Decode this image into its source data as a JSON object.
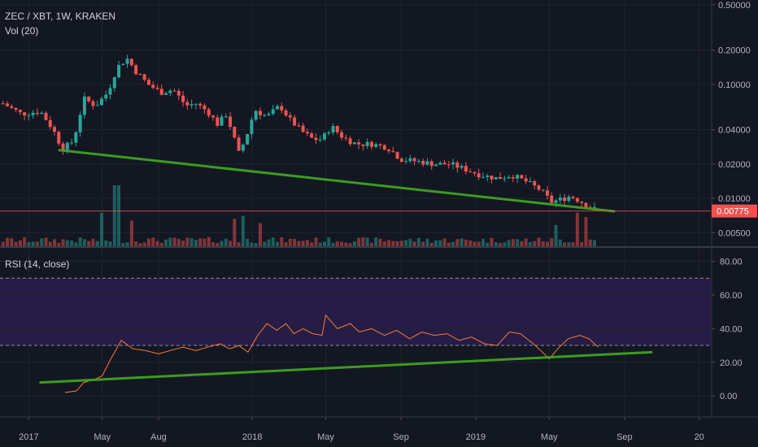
{
  "header": {
    "symbol_line": "ZEC / XBT, 1W, KRAKEN",
    "volume_label": "Vol (20)",
    "rsi_label": "RSI (14, close)"
  },
  "colors": {
    "background": "#131722",
    "grid": "#1f2430",
    "up": "#26a69a",
    "down": "#ef5350",
    "trendline": "#3d9b1f",
    "rsi_line": "#f57c3a",
    "rsi_band": "#2a1d4a",
    "current_price": "#ef5350"
  },
  "chart_data": [
    {
      "type": "candlestick",
      "title": "ZEC / XBT, 1W, KRAKEN",
      "y_scale": "log",
      "ylim": [
        0.0038,
        0.55
      ],
      "y_ticks": [
        "0.50000",
        "0.20000",
        "0.10000",
        "0.04000",
        "0.02000",
        "0.01000",
        "0.00500"
      ],
      "y_tick_values": [
        0.5,
        0.2,
        0.1,
        0.04,
        0.02,
        0.01,
        0.005
      ],
      "x_ticks": [
        "2017",
        "May",
        "Aug",
        "2018",
        "May",
        "Sep",
        "2019",
        "May",
        "Sep",
        "20"
      ],
      "x_tick_dates": [
        "2017-01-01",
        "2017-05-01",
        "2017-08-01",
        "2018-01-01",
        "2018-05-01",
        "2018-09-01",
        "2019-01-01",
        "2019-05-01",
        "2019-09-01",
        "2020-01-01"
      ],
      "x_range": [
        "2016-11-15",
        "2020-01-20"
      ],
      "last_price": "0.00775",
      "last_price_value": 0.00775,
      "trendline": {
        "from": [
          "2017-02-20",
          0.0265
        ],
        "to": [
          "2019-08-15",
          0.0077
        ]
      },
      "price_path": [
        [
          "2016-11-20",
          0.068
        ],
        [
          "2016-12-20",
          0.055
        ],
        [
          "2017-01-20",
          0.058
        ],
        [
          "2017-02-10",
          0.04
        ],
        [
          "2017-02-25",
          0.027
        ],
        [
          "2017-03-15",
          0.032
        ],
        [
          "2017-04-01",
          0.075
        ],
        [
          "2017-04-20",
          0.065
        ],
        [
          "2017-05-10",
          0.085
        ],
        [
          "2017-05-25",
          0.14
        ],
        [
          "2017-06-10",
          0.17
        ],
        [
          "2017-06-25",
          0.13
        ],
        [
          "2017-07-15",
          0.1
        ],
        [
          "2017-08-05",
          0.085
        ],
        [
          "2017-08-25",
          0.09
        ],
        [
          "2017-09-15",
          0.065
        ],
        [
          "2017-10-01",
          0.068
        ],
        [
          "2017-10-20",
          0.058
        ],
        [
          "2017-11-05",
          0.045
        ],
        [
          "2017-11-20",
          0.055
        ],
        [
          "2017-12-10",
          0.025
        ],
        [
          "2017-12-20",
          0.032
        ],
        [
          "2018-01-05",
          0.06
        ],
        [
          "2018-01-25",
          0.052
        ],
        [
          "2018-02-15",
          0.065
        ],
        [
          "2018-03-05",
          0.048
        ],
        [
          "2018-03-25",
          0.038
        ],
        [
          "2018-04-10",
          0.033
        ],
        [
          "2018-04-25",
          0.033
        ],
        [
          "2018-05-10",
          0.043
        ],
        [
          "2018-05-30",
          0.034
        ],
        [
          "2018-06-20",
          0.03
        ],
        [
          "2018-07-15",
          0.03
        ],
        [
          "2018-08-10",
          0.028
        ],
        [
          "2018-09-01",
          0.022
        ],
        [
          "2018-10-01",
          0.021
        ],
        [
          "2018-10-25",
          0.02
        ],
        [
          "2018-11-20",
          0.02
        ],
        [
          "2018-12-15",
          0.018
        ],
        [
          "2019-01-10",
          0.016
        ],
        [
          "2019-02-05",
          0.015
        ],
        [
          "2019-03-01",
          0.016
        ],
        [
          "2019-03-25",
          0.014
        ],
        [
          "2019-04-15",
          0.012
        ],
        [
          "2019-05-05",
          0.0093
        ],
        [
          "2019-05-20",
          0.0098
        ],
        [
          "2019-06-05",
          0.0105
        ],
        [
          "2019-06-20",
          0.0095
        ],
        [
          "2019-07-05",
          0.0085
        ],
        [
          "2019-07-20",
          0.00775
        ]
      ],
      "volume_spikes": [
        [
          "2017-05-01",
          0.55
        ],
        [
          "2017-05-25",
          1.0
        ],
        [
          "2017-06-20",
          0.42
        ],
        [
          "2017-12-01",
          0.45
        ],
        [
          "2017-12-15",
          0.5
        ],
        [
          "2018-01-15",
          0.38
        ],
        [
          "2019-05-10",
          0.35
        ],
        [
          "2019-06-15",
          0.55
        ],
        [
          "2019-07-01",
          0.48
        ]
      ]
    },
    {
      "type": "line",
      "title": "RSI (14, close)",
      "ylim": [
        -12,
        88
      ],
      "y_ticks": [
        "80.00",
        "60.00",
        "40.00",
        "20.00",
        "0.00"
      ],
      "y_tick_values": [
        80,
        60,
        40,
        20,
        0
      ],
      "band": [
        30,
        70
      ],
      "guide_lines": [
        70,
        30
      ],
      "trendline": {
        "from": [
          "2017-01-20",
          8
        ],
        "to": [
          "2019-10-15",
          26
        ]
      },
      "series": [
        {
          "values": [
            [
              "2017-03-01",
              2
            ],
            [
              "2017-03-20",
              3
            ],
            [
              "2017-04-01",
              8
            ],
            [
              "2017-04-20",
              10
            ],
            [
              "2017-05-01",
              12
            ],
            [
              "2017-05-15",
              22
            ],
            [
              "2017-06-01",
              33
            ],
            [
              "2017-06-20",
              28
            ],
            [
              "2017-07-10",
              27
            ],
            [
              "2017-08-01",
              25
            ],
            [
              "2017-08-20",
              27
            ],
            [
              "2017-09-10",
              29
            ],
            [
              "2017-10-01",
              27
            ],
            [
              "2017-10-20",
              29
            ],
            [
              "2017-11-10",
              31
            ],
            [
              "2017-11-25",
              28
            ],
            [
              "2017-12-10",
              30
            ],
            [
              "2017-12-25",
              26
            ],
            [
              "2018-01-10",
              36
            ],
            [
              "2018-01-25",
              43
            ],
            [
              "2018-02-10",
              39
            ],
            [
              "2018-02-25",
              43
            ],
            [
              "2018-03-10",
              37
            ],
            [
              "2018-03-25",
              40
            ],
            [
              "2018-04-10",
              37
            ],
            [
              "2018-04-25",
              36
            ],
            [
              "2018-05-01",
              48
            ],
            [
              "2018-05-20",
              40
            ],
            [
              "2018-06-10",
              43
            ],
            [
              "2018-06-25",
              38
            ],
            [
              "2018-07-15",
              40
            ],
            [
              "2018-08-05",
              36
            ],
            [
              "2018-08-25",
              39
            ],
            [
              "2018-09-15",
              34
            ],
            [
              "2018-10-05",
              38
            ],
            [
              "2018-10-25",
              36
            ],
            [
              "2018-11-15",
              37
            ],
            [
              "2018-12-05",
              33
            ],
            [
              "2018-12-25",
              35
            ],
            [
              "2019-01-15",
              31
            ],
            [
              "2019-02-05",
              30
            ],
            [
              "2019-02-25",
              38
            ],
            [
              "2019-03-15",
              37
            ],
            [
              "2019-04-05",
              31
            ],
            [
              "2019-04-20",
              26
            ],
            [
              "2019-05-01",
              22
            ],
            [
              "2019-05-15",
              28
            ],
            [
              "2019-06-01",
              34
            ],
            [
              "2019-06-20",
              36
            ],
            [
              "2019-07-05",
              34
            ],
            [
              "2019-07-20",
              29
            ]
          ]
        }
      ]
    }
  ]
}
